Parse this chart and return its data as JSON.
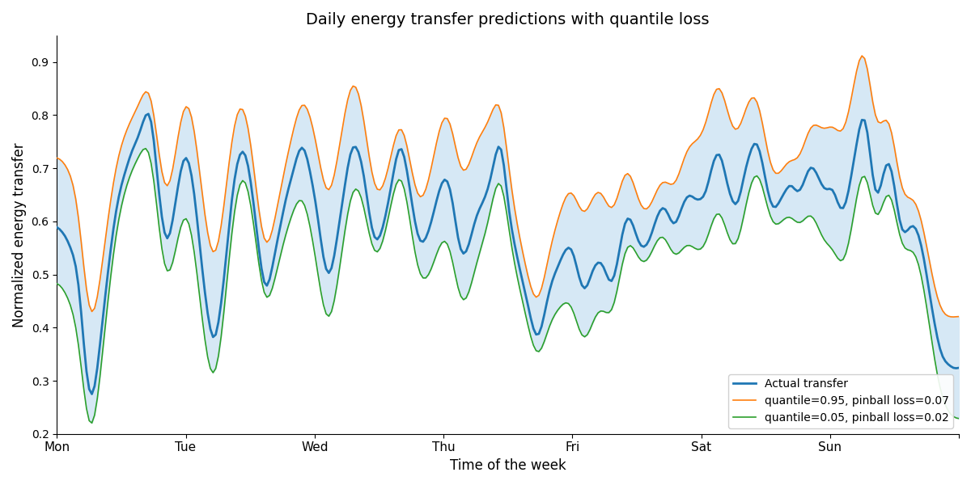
{
  "title": "Daily energy transfer predictions with quantile loss",
  "xlabel": "Time of the week",
  "ylabel": "Normalized energy transfer",
  "ylim": [
    0.2,
    0.95
  ],
  "xlim_days": 7,
  "days": [
    "Mon",
    "Tue",
    "Wed",
    "Thu",
    "Fri",
    "Sat",
    "Sun"
  ],
  "actual_color": "#1f77b4",
  "q95_color": "#ff7f0e",
  "q05_color": "#2ca02c",
  "fill_color": "#d6e8f5",
  "legend_labels": [
    "Actual transfer",
    "quantile=0.95, pinball loss=0.07",
    "quantile=0.05, pinball loss=0.02"
  ],
  "actual_lw": 2.0,
  "q_lw": 1.2,
  "seed": 0
}
